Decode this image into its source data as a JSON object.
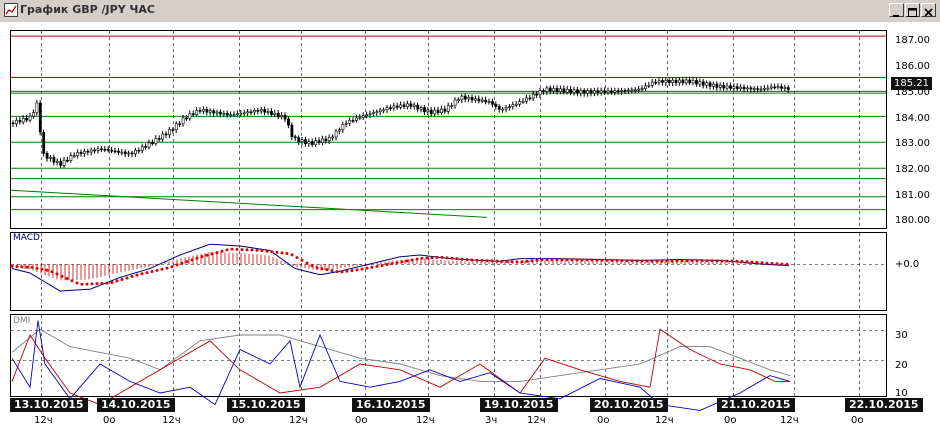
{
  "window": {
    "title": "График GBP /JPY ЧАС",
    "controls": {
      "minimize": "_",
      "maximize": "□",
      "close": "×"
    }
  },
  "price_axis": [
    "187.00",
    "186.00",
    "185.00",
    "184.00",
    "183.00",
    "182.00",
    "181.00",
    "180.00"
  ],
  "current_price": "185.21",
  "macd": {
    "label": "MACD",
    "zero_label": "+0.0"
  },
  "dmi": {
    "label": "DMI",
    "axis": [
      "30",
      "20",
      "10"
    ]
  },
  "date_labels": [
    "13.10.2015",
    "14.10.2015",
    "15.10.2015",
    "16.10.2015",
    "19.10.2015",
    "20.10.2015",
    "21.10.2015",
    "22.10.2015"
  ],
  "hour_labels": [
    "12ч",
    "0o",
    "12ч",
    "0o",
    "12ч",
    "0o",
    "12ч",
    "3ч",
    "12ч",
    "0o",
    "12ч",
    "0o",
    "12ч",
    "0o"
  ],
  "colors": {
    "candle_body": "#000000",
    "resistance": "#c00000",
    "support": "#008000",
    "macd_hist": "#c00000",
    "signal": "#e00000",
    "macd_line": "#000080",
    "dmi_plus": "#0000c0",
    "dmi_minus": "#c00000",
    "adx": "#808080",
    "grid": "#000000"
  }
}
